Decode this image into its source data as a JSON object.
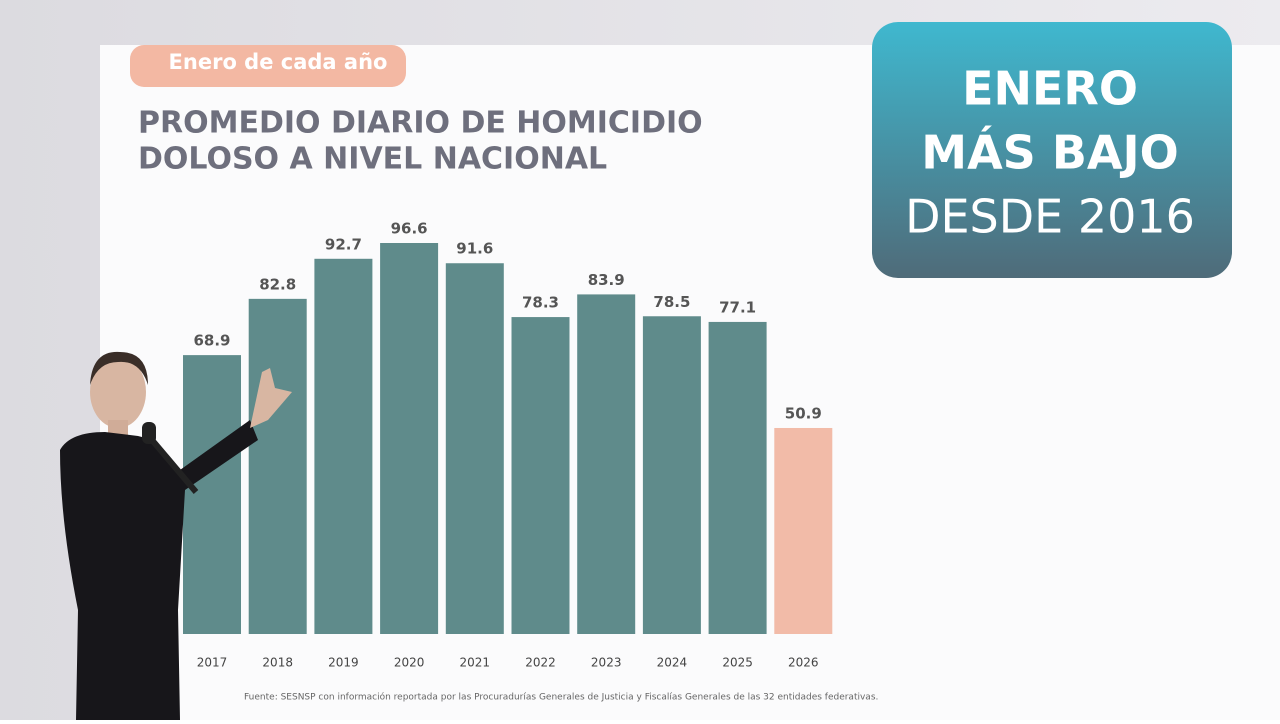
{
  "chart_data": {
    "type": "bar",
    "tag": "Enero de cada año",
    "title": [
      "PROMEDIO DIARIO DE HOMICIDIO",
      "DOLOSO A NIVEL NACIONAL"
    ],
    "callout": [
      "ENERO",
      "MÁS BAJO",
      "DESDE 2016"
    ],
    "categories": [
      "2017",
      "2018",
      "2019",
      "2020",
      "2021",
      "2022",
      "2023",
      "2024",
      "2025",
      "2026"
    ],
    "values": [
      68.9,
      82.8,
      92.7,
      96.6,
      91.6,
      78.3,
      83.9,
      78.5,
      77.1,
      50.9
    ],
    "colors": [
      "#5f8b8b",
      "#5f8b8b",
      "#5f8b8b",
      "#5f8b8b",
      "#5f8b8b",
      "#5f8b8b",
      "#5f8b8b",
      "#5f8b8b",
      "#5f8b8b",
      "#f2bba8"
    ],
    "source": "Fuente: SESNSP con información reportada por las Procuradurías Generales de Justicia y Fiscalías Generales de las 32 entidades federativas."
  }
}
